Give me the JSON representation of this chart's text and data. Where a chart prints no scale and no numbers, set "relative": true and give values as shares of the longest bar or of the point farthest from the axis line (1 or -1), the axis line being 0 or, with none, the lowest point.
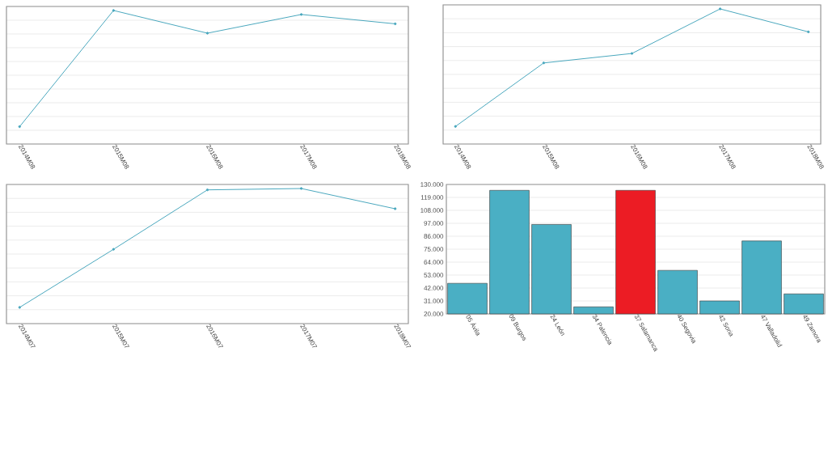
{
  "chart_data": [
    {
      "type": "line",
      "categories": [
        "2014M08",
        "2015M08",
        "2016M08",
        "2017M08",
        "2018M08"
      ],
      "relative": true,
      "grid": "y",
      "marker": "circle",
      "series": [
        {
          "color": "#4aa8be",
          "values": [
            0.13,
            1,
            0.83,
            0.97,
            0.9
          ]
        }
      ]
    },
    {
      "type": "line",
      "categories": [
        "2014M08",
        "2015M08",
        "2016M08",
        "2017M08",
        "2018M08"
      ],
      "relative": true,
      "grid": "y",
      "marker": "circle",
      "series": [
        {
          "color": "#4aa8be",
          "values": [
            0.13,
            0.6,
            0.67,
            1,
            0.83
          ]
        }
      ]
    },
    {
      "type": "line",
      "categories": [
        "2014M07",
        "2015M07",
        "2016M07",
        "2017M07",
        "2018M07"
      ],
      "relative": true,
      "grid": "y",
      "marker": "circle",
      "series": [
        {
          "color": "#4aa8be",
          "values": [
            0.12,
            0.55,
            0.99,
            1,
            0.85
          ]
        }
      ]
    },
    {
      "type": "bar",
      "categories": [
        "05 Ávila",
        "09 Burgos",
        "24 León",
        "34 Palencia",
        "37 Salamanca",
        "40 Segovia",
        "42 Soria",
        "47 Valladolid",
        "49 Zamora"
      ],
      "values": [
        46000,
        125000,
        96000,
        26000,
        125000,
        57000,
        31000,
        82000,
        37000
      ],
      "colors": [
        "#4aafc4",
        "#4aafc4",
        "#4aafc4",
        "#4aafc4",
        "#ec1c24",
        "#4aafc4",
        "#4aafc4",
        "#4aafc4",
        "#4aafc4"
      ],
      "ylim": [
        20000,
        130000
      ],
      "grid": "y",
      "yticks": [
        {
          "value": 20000,
          "label": "20.000"
        },
        {
          "value": 31000,
          "label": "31.000"
        },
        {
          "value": 42000,
          "label": "42.000"
        },
        {
          "value": 53000,
          "label": "53.000"
        },
        {
          "value": 64000,
          "label": "64.000"
        },
        {
          "value": 75000,
          "label": "75.000"
        },
        {
          "value": 86000,
          "label": "86.000"
        },
        {
          "value": 97000,
          "label": "97.000"
        },
        {
          "value": 108000,
          "label": "108.000"
        },
        {
          "value": 119000,
          "label": "119.000"
        },
        {
          "value": 130000,
          "label": "130.000"
        }
      ]
    }
  ]
}
